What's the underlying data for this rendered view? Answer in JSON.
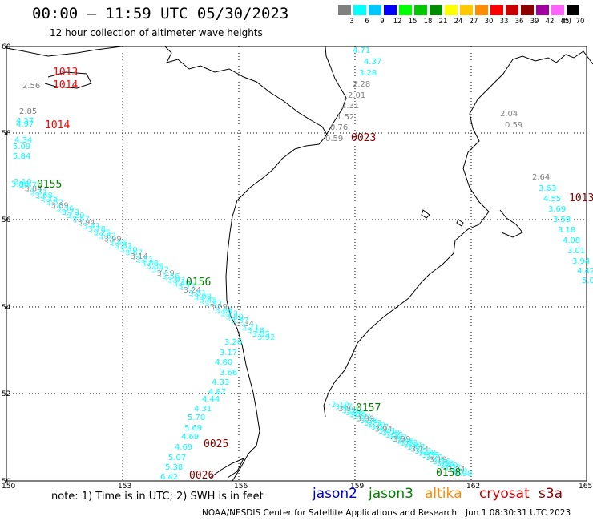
{
  "header": {
    "title": "00:00 – 11:59 UTC 05/30/2023",
    "subtitle": "12 hour collection of altimeter wave heights"
  },
  "colorbar": {
    "unit": "(ft)",
    "entries": [
      {
        "label": "3",
        "color": "#808080"
      },
      {
        "label": "6",
        "color": "#00ffff"
      },
      {
        "label": "9",
        "color": "#00c8ff"
      },
      {
        "label": "12",
        "color": "#0000ff"
      },
      {
        "label": "15",
        "color": "#00ff00"
      },
      {
        "label": "18",
        "color": "#00c800"
      },
      {
        "label": "21",
        "color": "#008c00"
      },
      {
        "label": "24",
        "color": "#ffff00"
      },
      {
        "label": "27",
        "color": "#ffc800"
      },
      {
        "label": "30",
        "color": "#ff8c00"
      },
      {
        "label": "33",
        "color": "#ff0000"
      },
      {
        "label": "36",
        "color": "#c80000"
      },
      {
        "label": "39",
        "color": "#8c0000"
      },
      {
        "label": "42",
        "color": "#a000a0"
      },
      {
        "label": "45",
        "color": "#ff64ff"
      },
      {
        "label": "70",
        "color": "#000000"
      }
    ]
  },
  "axes": {
    "lon_ticks": [
      "150",
      "153",
      "156",
      "159",
      "162",
      "165"
    ],
    "lat_ticks": [
      "60",
      "58",
      "56",
      "54",
      "52",
      "50"
    ]
  },
  "time_labels": [
    {
      "text": "1013",
      "color": "#ff0000"
    },
    {
      "text": "1014",
      "color": "#ff0000"
    },
    {
      "text": "1014",
      "color": "#ff0000"
    },
    {
      "text": "0023",
      "color": "#8b0000"
    },
    {
      "text": "1013",
      "color": "#8b0000"
    },
    {
      "text": "0155",
      "color": "#008000"
    },
    {
      "text": "0156",
      "color": "#008000"
    },
    {
      "text": "0157",
      "color": "#008000"
    },
    {
      "text": "0158",
      "color": "#008000"
    },
    {
      "text": "0025",
      "color": "#8b0000"
    },
    {
      "text": "0026",
      "color": "#8b0000"
    }
  ],
  "wave_values": [
    {
      "text": "4.71",
      "color": "#00ffff"
    },
    {
      "text": "4.37",
      "color": "#00ffff"
    },
    {
      "text": "3.28",
      "color": "#00ffff"
    },
    {
      "text": "2.28",
      "color": "#808080"
    },
    {
      "text": "2.01",
      "color": "#808080"
    },
    {
      "text": "2.31",
      "color": "#808080"
    },
    {
      "text": "1.52",
      "color": "#808080"
    },
    {
      "text": "0.76",
      "color": "#808080"
    },
    {
      "text": "0.59",
      "color": "#808080"
    },
    {
      "text": "2.56",
      "color": "#808080"
    },
    {
      "text": "2.85",
      "color": "#808080"
    },
    {
      "text": "4.37",
      "color": "#00ffff"
    },
    {
      "text": "4.97",
      "color": "#00ffff"
    },
    {
      "text": "4.34",
      "color": "#00ffff"
    },
    {
      "text": "5.09",
      "color": "#00ffff"
    },
    {
      "text": "5.84",
      "color": "#00ffff"
    },
    {
      "text": "3.86",
      "color": "#00ffff"
    },
    {
      "text": "2.04",
      "color": "#808080"
    },
    {
      "text": "0.59",
      "color": "#808080"
    },
    {
      "text": "2.64",
      "color": "#808080"
    },
    {
      "text": "3.63",
      "color": "#00ffff"
    },
    {
      "text": "4.55",
      "color": "#00ffff"
    },
    {
      "text": "3.69",
      "color": "#00ffff"
    },
    {
      "text": "3.58",
      "color": "#00ffff"
    },
    {
      "text": "3.18",
      "color": "#00ffff"
    },
    {
      "text": "4.08",
      "color": "#00ffff"
    },
    {
      "text": "3.01",
      "color": "#00ffff"
    },
    {
      "text": "3.94",
      "color": "#00ffff"
    },
    {
      "text": "4.42",
      "color": "#00ffff"
    },
    {
      "text": "5.0",
      "color": "#00ffff"
    },
    {
      "text": "3.26",
      "color": "#00ffff"
    },
    {
      "text": "3.17",
      "color": "#00ffff"
    },
    {
      "text": "4.80",
      "color": "#00ffff"
    },
    {
      "text": "3.66",
      "color": "#00ffff"
    },
    {
      "text": "4.33",
      "color": "#00ffff"
    },
    {
      "text": "4.87",
      "color": "#00ffff"
    },
    {
      "text": "4.44",
      "color": "#00ffff"
    },
    {
      "text": "4.31",
      "color": "#00ffff"
    },
    {
      "text": "5.70",
      "color": "#00ffff"
    },
    {
      "text": "5.69",
      "color": "#00ffff"
    },
    {
      "text": "4.69",
      "color": "#00ffff"
    },
    {
      "text": "4.69",
      "color": "#00ffff"
    },
    {
      "text": "5.07",
      "color": "#00ffff"
    },
    {
      "text": "5.38",
      "color": "#00ffff"
    },
    {
      "text": "6.42",
      "color": "#00ffff"
    },
    {
      "text": "5.81",
      "color": "#00ffff"
    }
  ],
  "footer": {
    "note": "note:  1) Time is in UTC;  2) SWH is in feet",
    "missions": [
      {
        "name": "jason2",
        "color": "#0000cc"
      },
      {
        "name": "jason3",
        "color": "#008000"
      },
      {
        "name": "altika",
        "color": "#ff8c00"
      },
      {
        "name": "cryosat",
        "color": "#cc0000"
      },
      {
        "name": "s3a",
        "color": "#8b0000"
      }
    ],
    "credit": "NOAA/NESDIS Center for Satellite Applications and Research",
    "generated": "Jun  1 08:30:31 UTC 2023"
  }
}
